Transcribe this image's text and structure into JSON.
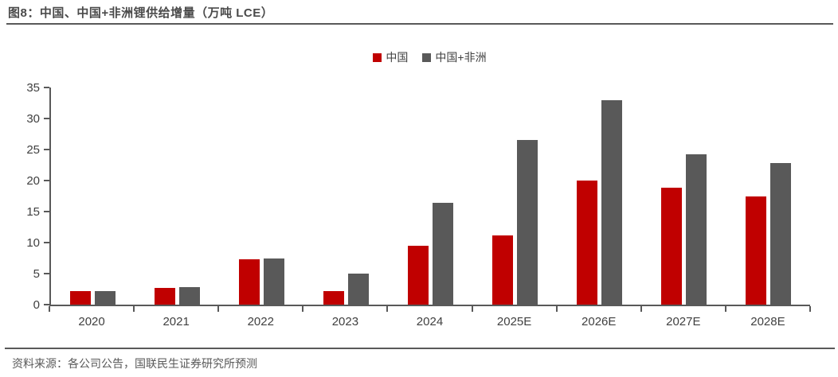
{
  "header": {
    "title": "图8：中国、中国+非洲锂供给增量（万吨 LCE）"
  },
  "legend": {
    "items": [
      {
        "id": "china",
        "label": "中国",
        "color": "#c00000"
      },
      {
        "id": "china-africa",
        "label": "中国+非洲",
        "color": "#595959"
      }
    ]
  },
  "footer": {
    "source": "资料来源：各公司公告，国联民生证券研究所预测"
  },
  "colors": {
    "accent_red": "#c00000",
    "dark_gray": "#595959",
    "axis": "#595959",
    "label_text": "#404040"
  },
  "chart_data": {
    "type": "bar",
    "title": "图8：中国、中国+非洲锂供给增量（万吨 LCE）",
    "unit": "万吨 LCE",
    "categories": [
      "2020",
      "2021",
      "2022",
      "2023",
      "2024",
      "2025E",
      "2026E",
      "2027E",
      "2028E"
    ],
    "series": [
      {
        "name": "中国",
        "id": "china",
        "color": "#c00000",
        "values": [
          2.2,
          2.7,
          7.3,
          2.2,
          9.5,
          11.2,
          20.0,
          18.8,
          17.4
        ]
      },
      {
        "name": "中国+非洲",
        "id": "china-africa",
        "color": "#595959",
        "values": [
          2.2,
          2.8,
          7.5,
          5.0,
          16.4,
          26.5,
          33.0,
          24.2,
          22.8
        ]
      }
    ],
    "xlabel": "",
    "ylabel": "",
    "ylim": [
      0,
      35
    ],
    "ytick_step": 5,
    "yticks": [
      0,
      5,
      10,
      15,
      20,
      25,
      30,
      35
    ],
    "grid": false,
    "legend_position": "top-center"
  }
}
